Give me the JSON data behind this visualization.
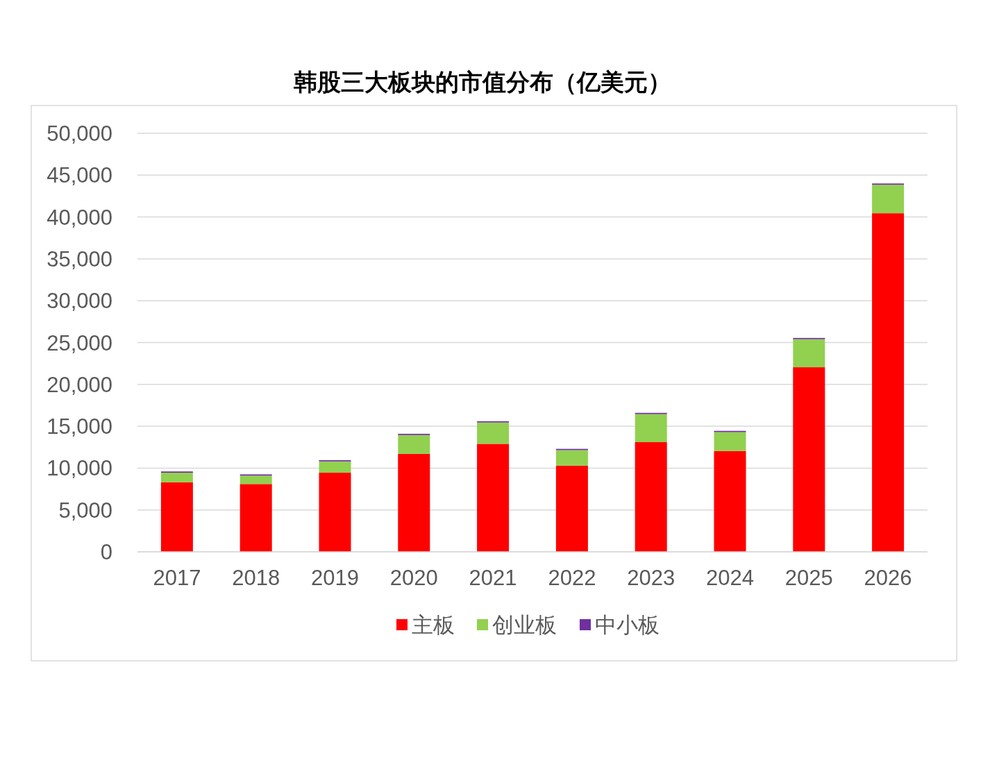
{
  "chart_data": {
    "type": "bar",
    "title": "韩股三大板块的市值分布（亿美元）",
    "categories": [
      "2017",
      "2018",
      "2019",
      "2020",
      "2021",
      "2022",
      "2023",
      "2024",
      "2025",
      "2026"
    ],
    "series": [
      {
        "name": "主板",
        "color": "#ff0000",
        "values": [
          8300,
          8100,
          9450,
          11700,
          12900,
          10300,
          13100,
          12050,
          22050,
          40450
        ]
      },
      {
        "name": "创业板",
        "color": "#92d050",
        "values": [
          1150,
          1000,
          1350,
          2250,
          2550,
          1850,
          3350,
          2250,
          3350,
          3400
        ]
      },
      {
        "name": "中小板",
        "color": "#7030a0",
        "values": [
          150,
          150,
          150,
          150,
          150,
          150,
          150,
          150,
          150,
          150
        ]
      }
    ],
    "stacked": true,
    "ylim": [
      0,
      50000
    ],
    "yticks": [
      0,
      {
        "value": 5000,
        "label": "5,000"
      },
      {
        "value": 10000,
        "label": "10,000"
      },
      {
        "value": 15000,
        "label": "15,000"
      },
      {
        "value": 20000,
        "label": "20,000"
      },
      {
        "value": 25000,
        "label": "25,000"
      },
      {
        "value": 30000,
        "label": "30,000"
      },
      {
        "value": 35000,
        "label": "35,000"
      },
      {
        "value": 40000,
        "label": "40,000"
      },
      {
        "value": 45000,
        "label": "45,000"
      },
      {
        "value": 50000,
        "label": "50,000"
      }
    ],
    "grid": "y",
    "legend": "bottom"
  }
}
